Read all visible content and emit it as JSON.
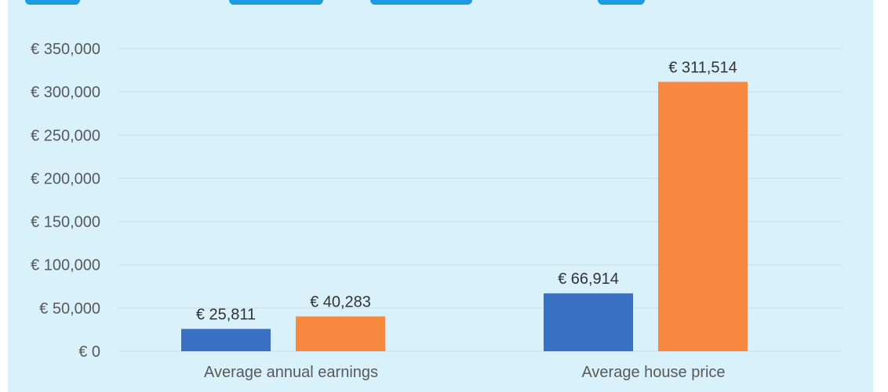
{
  "chart_data": {
    "type": "bar",
    "categories": [
      "Average annual earnings",
      "Average house price"
    ],
    "series": [
      {
        "color": "#3a70c2",
        "values": [
          25811,
          66914
        ]
      },
      {
        "color": "#f7883f",
        "values": [
          40283,
          311514
        ]
      }
    ],
    "value_labels": [
      [
        "€ 25,811",
        "€ 66,914"
      ],
      [
        "€ 40,283",
        "€ 311,514"
      ]
    ],
    "y_ticks": [
      0,
      50000,
      100000,
      150000,
      200000,
      250000,
      300000,
      350000
    ],
    "y_tick_labels": [
      "€ 0",
      "€ 50,000",
      "€ 100,000",
      "€ 150,000",
      "€ 200,000",
      "€ 250,000",
      "€ 300,000",
      "€ 350,000"
    ],
    "ylim": [
      0,
      350000
    ],
    "grid": true,
    "legend": "none"
  },
  "colors": {
    "background": "#d9f1fa",
    "gridline": "#c8dde6",
    "tick_label": "#595959",
    "value_label": "#333333",
    "title_fragment": "#1b9be0"
  }
}
